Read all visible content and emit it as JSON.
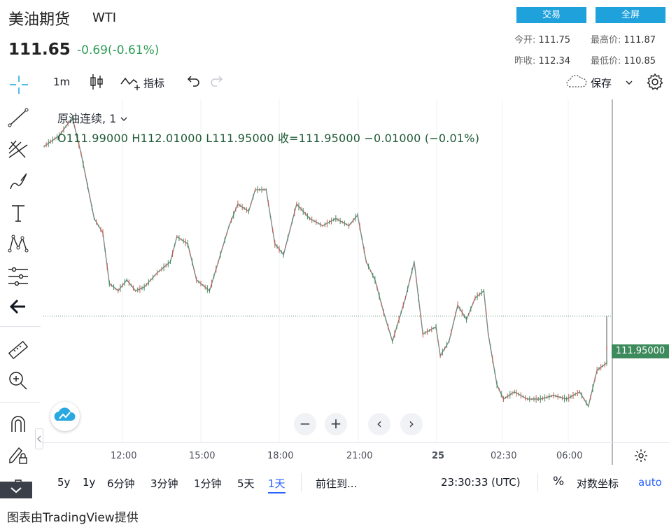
{
  "header": {
    "title": "美油期货",
    "symbol": "WTI",
    "price": "111.65",
    "change": "-0.69(-0.61%)",
    "trade_button": "交易",
    "fullscreen_button": "全屏",
    "open_label": "今开:",
    "open_value": "111.75",
    "high_label": "最高价:",
    "high_value": "111.87",
    "prev_close_label": "昨收:",
    "prev_close_value": "112.34",
    "low_label": "最低价:",
    "low_value": "110.85"
  },
  "toolbar": {
    "interval": "1m",
    "indicators_label": "指标",
    "save_label": "保存"
  },
  "legend": {
    "series_name": "原油连续, 1",
    "ohlc": "O111.99000   H112.01000   L111.95000   收=111.95000   −0.01000 (−0.01%)"
  },
  "price_tag": "111.95000",
  "bottom_bar": {
    "ranges": [
      "5y",
      "1y",
      "6分钟",
      "3分钟",
      "1分钟",
      "5天",
      "1天"
    ],
    "goto_label": "前往到...",
    "clock": "23:30:33 (UTC)",
    "percent_label": "%",
    "log_label": "对数坐标",
    "auto_label": "auto"
  },
  "footer": "图表由TradingView提供",
  "colors": {
    "accent": "#1fa1db",
    "up": "#2c9d55",
    "price_tag": "#3d8a5c",
    "active": "#2962ff"
  },
  "chart_data": {
    "type": "line",
    "title": "原油连续, 1",
    "x_ticks": [
      "12:00",
      "15:00",
      "18:00",
      "21:00",
      "25",
      "02:30",
      "06:00"
    ],
    "x": [
      "09:10",
      "09:45",
      "10:15",
      "10:35",
      "11:05",
      "11:25",
      "11:40",
      "12:00",
      "12:20",
      "12:40",
      "13:00",
      "13:30",
      "14:00",
      "14:15",
      "14:40",
      "15:00",
      "15:30",
      "15:50",
      "16:15",
      "16:35",
      "17:00",
      "17:15",
      "17:40",
      "18:00",
      "18:20",
      "18:50",
      "19:20",
      "19:50",
      "20:20",
      "20:50",
      "21:10",
      "21:30",
      "21:50",
      "22:10",
      "22:30",
      "23:00",
      "23:20",
      "23:40",
      "00:10",
      "00:20",
      "00:40",
      "01:00",
      "01:20",
      "01:40",
      "02:00",
      "02:10",
      "02:30",
      "02:45",
      "03:10",
      "03:40",
      "04:10",
      "04:40",
      "05:10",
      "05:40",
      "06:00",
      "06:20",
      "06:50",
      "07:10",
      "07:25"
    ],
    "values": [
      112.42,
      112.45,
      112.5,
      112.4,
      112.22,
      112.18,
      112.04,
      112.02,
      112.05,
      112.02,
      112.03,
      112.07,
      112.1,
      112.17,
      112.15,
      112.05,
      112.02,
      112.1,
      112.2,
      112.26,
      112.24,
      112.3,
      112.3,
      112.15,
      112.12,
      112.26,
      112.22,
      112.2,
      112.22,
      112.2,
      112.23,
      112.1,
      112.05,
      111.96,
      111.88,
      112.0,
      112.1,
      111.9,
      111.92,
      111.84,
      111.88,
      111.98,
      111.94,
      112.0,
      112.02,
      111.9,
      111.76,
      111.72,
      111.74,
      111.72,
      111.72,
      111.73,
      111.72,
      111.74,
      111.7,
      111.8,
      111.82,
      111.86,
      111.95
    ],
    "ylim": [
      111.6,
      112.55
    ],
    "last_price": 111.95,
    "grid": true
  }
}
